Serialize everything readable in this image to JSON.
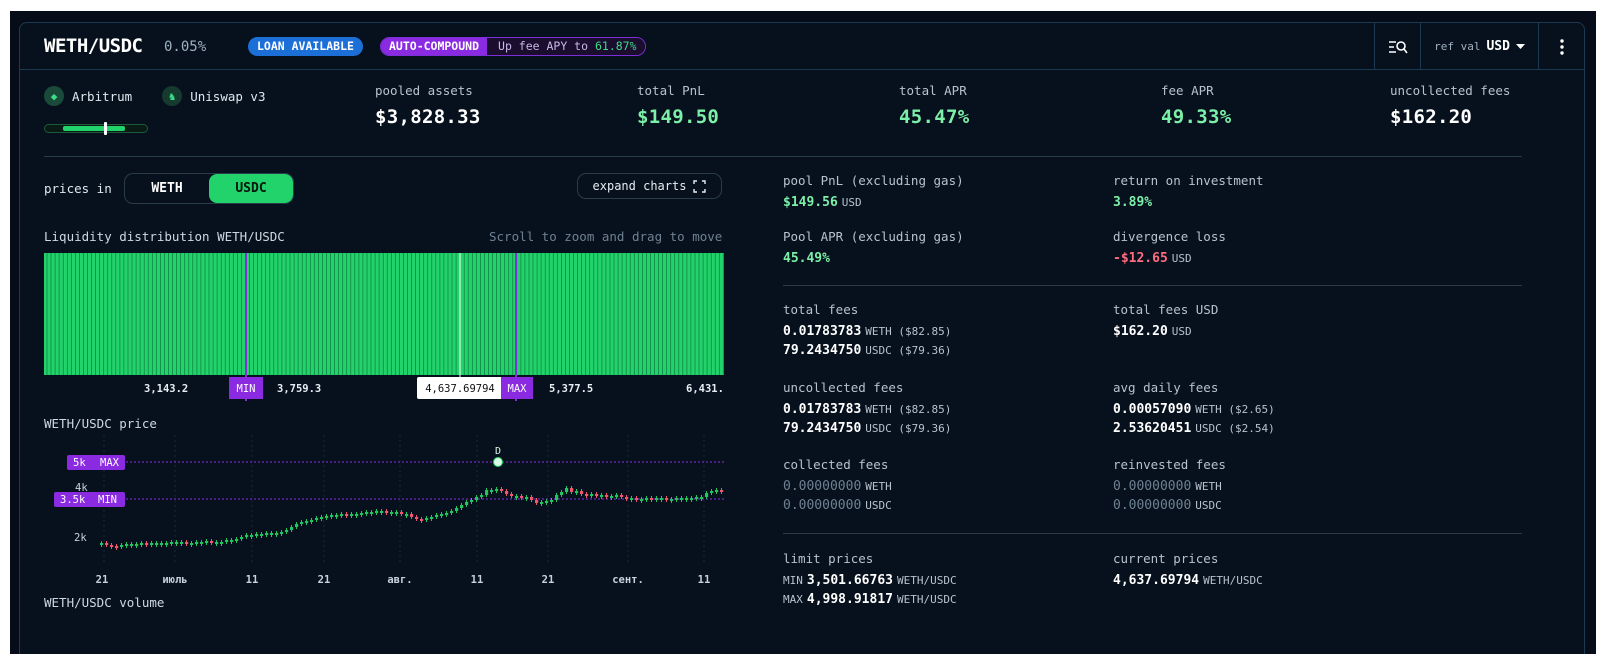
{
  "header": {
    "pair": "WETH/USDC",
    "fee_tier": "0.05%",
    "loan_badge": "LOAN AVAILABLE",
    "auto_compound_label": "AUTO-COMPOUND",
    "auto_compound_text": "Up fee APY to",
    "auto_compound_value": "61.87%",
    "ref_val_label": "ref val",
    "ref_val_value": "USD"
  },
  "position": {
    "network": "Arbitrum",
    "protocol": "Uniswap v3",
    "range_fraction": 0.58
  },
  "stats": [
    {
      "label": "pooled assets",
      "value": "$3,828.33"
    },
    {
      "label": "total PnL",
      "value": "$149.50"
    },
    {
      "label": "total APR",
      "value": "45.47%"
    },
    {
      "label": "fee APR",
      "value": "49.33%"
    },
    {
      "label": "uncollected fees",
      "value": "$162.20"
    }
  ],
  "controls": {
    "prices_in_label": "prices in",
    "option_a": "WETH",
    "option_b": "USDC",
    "selected": "USDC",
    "expand_label": "expand charts"
  },
  "liquidity": {
    "title": "Liquidity distribution WETH/USDC",
    "hint": "Scroll to zoom and drag to move",
    "tick_labels": [
      "3,143.2",
      "3,759.3",
      "5,377.5",
      "6,431."
    ],
    "min_label": "MIN",
    "max_label": "MAX",
    "current_label": "4,637.69794"
  },
  "price_chart": {
    "title": "WETH/USDC price",
    "y_labels": [
      "4k",
      "2k"
    ],
    "max_tag_value": "5k",
    "max_tag_label": "MAX",
    "min_tag_value": "3.5k",
    "min_tag_label": "MIN",
    "marker_label": "D",
    "x_labels": [
      "21",
      "июль",
      "11",
      "21",
      "авг.",
      "11",
      "21",
      "сент.",
      "11"
    ]
  },
  "volume": {
    "title": "WETH/USDC volume"
  },
  "details": {
    "pool_pnl_label": "pool PnL (excluding gas)",
    "pool_pnl_value": "$149.56",
    "pool_pnl_unit": "USD",
    "roi_label": "return on investment",
    "roi_value": "3.89%",
    "pool_apr_label": "Pool APR (excluding gas)",
    "pool_apr_value": "45.49%",
    "divergence_label": "divergence loss",
    "divergence_value": "-$12.65",
    "divergence_unit": "USD",
    "total_fees_label": "total fees",
    "total_fees_weth": "0.01783783",
    "total_fees_weth_unit": "WETH ($82.85)",
    "total_fees_usdc": "79.2434750",
    "total_fees_usdc_unit": "USDC ($79.36)",
    "total_fees_usd_label": "total fees USD",
    "total_fees_usd_value": "$162.20",
    "total_fees_usd_unit": "USD",
    "uncollected_label": "uncollected fees",
    "uncollected_weth": "0.01783783",
    "uncollected_weth_unit": "WETH ($82.85)",
    "uncollected_usdc": "79.2434750",
    "uncollected_usdc_unit": "USDC ($79.36)",
    "avg_daily_label": "avg daily fees",
    "avg_daily_weth": "0.00057090",
    "avg_daily_weth_unit": "WETH ($2.65)",
    "avg_daily_usdc": "2.53620451",
    "avg_daily_usdc_unit": "USDC ($2.54)",
    "collected_label": "collected fees",
    "collected_weth": "0.00000000",
    "collected_weth_unit": "WETH",
    "collected_usdc": "0.00000000",
    "collected_usdc_unit": "USDC",
    "reinvested_label": "reinvested fees",
    "reinvested_weth": "0.00000000",
    "reinvested_weth_unit": "WETH",
    "reinvested_usdc": "0.00000000",
    "reinvested_usdc_unit": "USDC",
    "limit_label": "limit prices",
    "limit_min_prefix": "MIN",
    "limit_min_value": "3,501.66763",
    "limit_max_prefix": "MAX",
    "limit_max_value": "4,998.91817",
    "limit_unit": "WETH/USDC",
    "current_label": "current prices",
    "current_value": "4,637.69794",
    "current_unit": "WETH/USDC"
  },
  "colors": {
    "accent_green": "#22d36b",
    "accent_purple": "#8a2be2",
    "badge_blue": "#1d6fd8",
    "loss_red": "#ff6b81",
    "background": "#07111d"
  },
  "icons": [
    "arbitrum-icon",
    "uniswap-icon",
    "search-list-icon",
    "chevron-down-icon",
    "more-vertical-icon",
    "expand-icon"
  ]
}
